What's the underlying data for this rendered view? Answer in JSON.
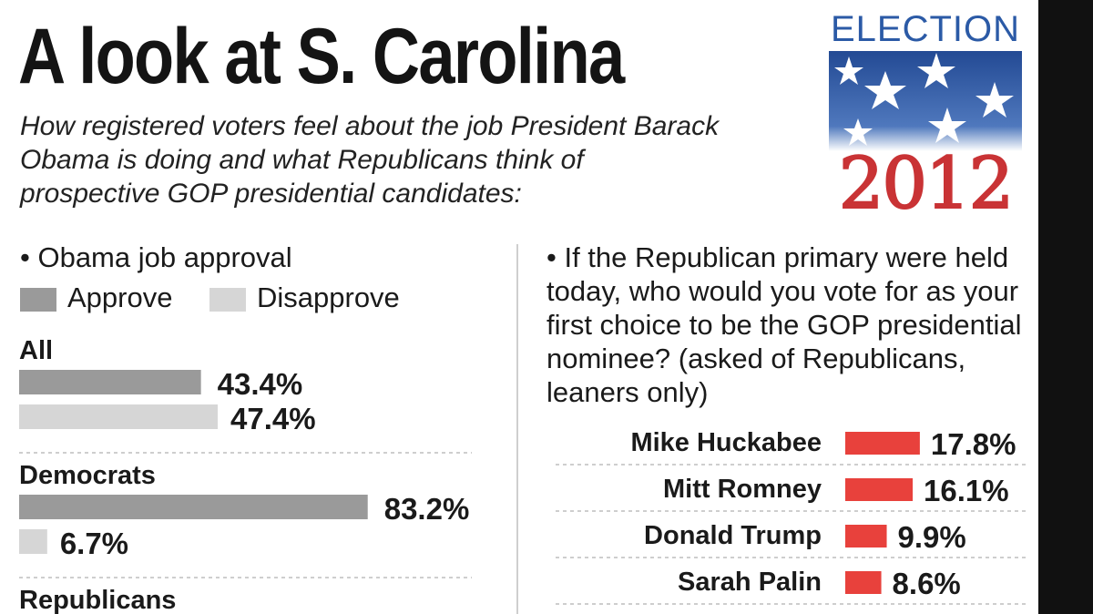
{
  "title": "A look at S. Carolina",
  "subtitle": "How registered voters feel about the job President Barack Obama is doing and what Republicans think of prospective GOP presidential candidates:",
  "logo": {
    "word": "ELECTION",
    "year": "2012",
    "colors": {
      "blue": "#2b5aa6",
      "red": "#c93335"
    }
  },
  "left_panel": {
    "question": "• Obama job approval",
    "legend": [
      {
        "label": "Approve",
        "color": "#9a9a9a"
      },
      {
        "label": "Disapprove",
        "color": "#d6d6d6"
      }
    ]
  },
  "right_panel": {
    "question": "• If the Republican primary were held today, who would you vote for as your first choice to be the GOP presidential nominee? (asked of Republicans, leaners only)"
  },
  "chart_data": [
    {
      "type": "bar",
      "orientation": "horizontal",
      "title": "Obama job approval",
      "unit": "%",
      "categories": [
        "All",
        "Democrats",
        "Republicans"
      ],
      "series": [
        {
          "name": "Approve",
          "color": "#9a9a9a",
          "values": [
            43.4,
            83.2,
            null
          ]
        },
        {
          "name": "Disapprove",
          "color": "#d6d6d6",
          "values": [
            47.4,
            6.7,
            null
          ]
        }
      ],
      "value_labels": [
        [
          "43.4%",
          "47.4%"
        ],
        [
          "83.2%",
          "6.7%"
        ],
        [
          "",
          ""
        ]
      ]
    },
    {
      "type": "bar",
      "orientation": "horizontal",
      "unit": "%",
      "color": "#e8413c",
      "categories": [
        "Mike Huckabee",
        "Mitt Romney",
        "Donald Trump",
        "Sarah Palin"
      ],
      "values": [
        17.8,
        16.1,
        9.9,
        8.6
      ],
      "value_labels": [
        "17.8%",
        "16.1%",
        "9.9%",
        "8.6%"
      ]
    }
  ]
}
